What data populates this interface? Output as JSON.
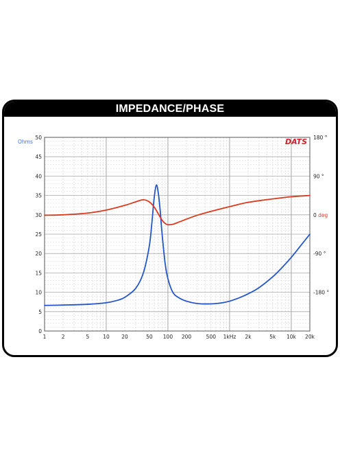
{
  "title": "IMPEDANCE/PHASE",
  "colors": {
    "impedance": "#2255cc",
    "phase": "#d93a1e",
    "left_axis_label": "#3b6fd6",
    "right_axis_label": "#d93a1e",
    "logo": "#d0202a"
  },
  "chart_data": {
    "type": "line",
    "title": "IMPEDANCE/PHASE",
    "logo": "DATS",
    "x_scale": "log",
    "xlim": [
      1,
      20000
    ],
    "x_tick_values": [
      1,
      2,
      5,
      10,
      20,
      50,
      100,
      200,
      500,
      1000,
      2000,
      5000,
      10000,
      20000
    ],
    "x_tick_labels": [
      "1",
      "2",
      "5",
      "10",
      "20",
      "50",
      "100",
      "200",
      "500",
      "1kHz",
      "2k",
      "5k",
      "10k",
      "20k"
    ],
    "ylim": [
      0,
      50
    ],
    "y_ticks": [
      0,
      5,
      10,
      15,
      20,
      25,
      30,
      35,
      40,
      45,
      50
    ],
    "ylabel": "Ohms",
    "y2lim": [
      -270,
      180
    ],
    "y2_ticks": [
      180,
      90,
      0,
      -90,
      -180
    ],
    "y2_tick_labels": [
      "180 °",
      "90 °",
      "0 deg",
      "-90 °",
      "-180 °"
    ],
    "grid": true,
    "series": [
      {
        "axis": "left",
        "x": [
          1,
          2,
          5,
          10,
          15,
          20,
          30,
          40,
          50,
          55,
          60,
          65,
          70,
          75,
          80,
          90,
          100,
          120,
          150,
          200,
          300,
          500,
          700,
          1000,
          1500,
          2000,
          3000,
          5000,
          7000,
          10000,
          15000,
          20000
        ],
        "values": [
          6.6,
          6.7,
          6.9,
          7.3,
          7.9,
          8.7,
          11.0,
          15.0,
          22.0,
          28.0,
          34.5,
          37.7,
          35.5,
          31.0,
          25.5,
          17.5,
          13.5,
          10.0,
          8.6,
          7.7,
          7.1,
          7.0,
          7.2,
          7.7,
          8.7,
          9.6,
          11.2,
          14.0,
          16.3,
          19.0,
          22.5,
          25.0
        ]
      },
      {
        "axis": "right",
        "x": [
          1,
          2,
          5,
          10,
          20,
          30,
          40,
          50,
          60,
          70,
          80,
          90,
          100,
          120,
          150,
          200,
          300,
          500,
          1000,
          2000,
          5000,
          10000,
          20000
        ],
        "values": [
          -1,
          0,
          4,
          11,
          22,
          30,
          35,
          30,
          18,
          2,
          -12,
          -20,
          -23,
          -22,
          -17,
          -10,
          -1,
          8,
          19,
          29,
          37,
          42,
          45
        ]
      }
    ]
  }
}
